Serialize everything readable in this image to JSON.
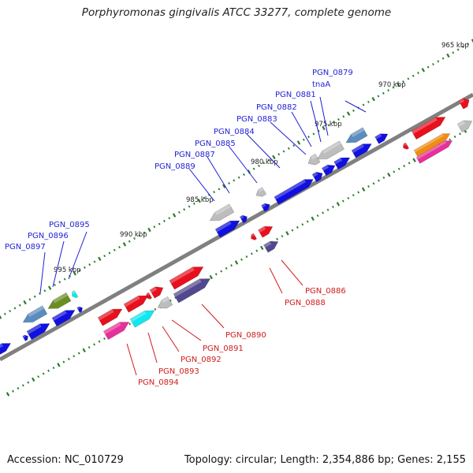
{
  "title": "Porphyromonas gingivalis ATCC 33277, complete genome",
  "footer": {
    "accession": "Accession: NC_010729",
    "topology": "Topology: circular; Length: 2,354,886 bp; Genes: 2,155"
  },
  "colors": {
    "backbone": "#808080",
    "tick": "#2a7a2a",
    "forward_label": "#1f1fd6",
    "reverse_label": "#d11a1a",
    "blue": "#1010e0",
    "steel": "#5b8cc0",
    "grey": "#bdbdbd",
    "red": "#e8101c",
    "magenta": "#e8309a",
    "cyan": "#10e8f0",
    "olive": "#6b8e23",
    "purple": "#52488e",
    "orange": "#f08c10"
  },
  "ticks": [
    {
      "label": "965 kbp"
    },
    {
      "label": "970 kbp"
    },
    {
      "label": "975 kbp"
    },
    {
      "label": "980 kbp"
    },
    {
      "label": "985 kbp"
    },
    {
      "label": "990 kbp"
    },
    {
      "label": "995 kbp"
    }
  ],
  "forward_labels": [
    {
      "text": "PGN_0879"
    },
    {
      "text": "tnaA"
    },
    {
      "text": "PGN_0881"
    },
    {
      "text": "PGN_0882"
    },
    {
      "text": "PGN_0883"
    },
    {
      "text": "PGN_0884"
    },
    {
      "text": "PGN_0885"
    },
    {
      "text": "PGN_0887"
    },
    {
      "text": "PGN_0889"
    },
    {
      "text": "PGN_0895"
    },
    {
      "text": "PGN_0896"
    },
    {
      "text": "PGN_0897"
    }
  ],
  "reverse_labels": [
    {
      "text": "PGN_0886"
    },
    {
      "text": "PGN_0888"
    },
    {
      "text": "PGN_0890"
    },
    {
      "text": "PGN_0891"
    },
    {
      "text": "PGN_0892"
    },
    {
      "text": "PGN_0893"
    },
    {
      "text": "PGN_0894"
    }
  ]
}
